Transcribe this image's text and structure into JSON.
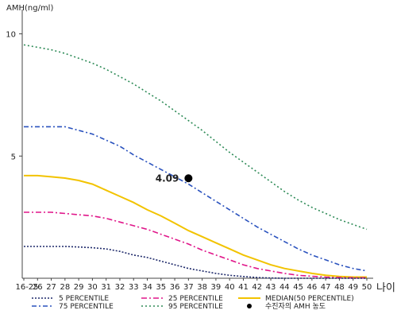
{
  "chart_data": {
    "type": "line",
    "ylabel": "AMH(ng/ml)",
    "xlabel": "나이",
    "categories": [
      "16-25",
      "26",
      "27",
      "28",
      "29",
      "30",
      "31",
      "32",
      "33",
      "34",
      "35",
      "36",
      "37",
      "38",
      "39",
      "40",
      "41",
      "42",
      "43",
      "44",
      "45",
      "46",
      "47",
      "48",
      "49",
      "50"
    ],
    "y_ticks": [
      5,
      10
    ],
    "ylim": [
      0,
      10.8
    ],
    "series": [
      {
        "name": "95 PERCENTILE",
        "color": "#2e8b57",
        "dash": "2,3",
        "values": [
          9.55,
          9.45,
          9.35,
          9.2,
          9.0,
          8.8,
          8.55,
          8.25,
          7.95,
          7.6,
          7.25,
          6.85,
          6.45,
          6.05,
          5.6,
          5.15,
          4.75,
          4.35,
          3.95,
          3.55,
          3.2,
          2.9,
          2.65,
          2.4,
          2.2,
          2.0
        ]
      },
      {
        "name": "75 PERCENTILE",
        "color": "#2a52be",
        "dash": "6,3,2,3",
        "values": [
          6.2,
          6.2,
          6.2,
          6.2,
          6.05,
          5.9,
          5.65,
          5.4,
          5.05,
          4.75,
          4.45,
          4.15,
          3.85,
          3.5,
          3.15,
          2.8,
          2.45,
          2.1,
          1.8,
          1.5,
          1.2,
          0.95,
          0.75,
          0.55,
          0.4,
          0.3
        ]
      },
      {
        "name": "MEDIAN(50 PERCENTILE)",
        "color": "#f2c300",
        "dash": "",
        "values": [
          4.2,
          4.2,
          4.15,
          4.1,
          4.0,
          3.85,
          3.6,
          3.35,
          3.1,
          2.8,
          2.55,
          2.25,
          1.95,
          1.7,
          1.45,
          1.2,
          0.95,
          0.75,
          0.55,
          0.4,
          0.3,
          0.2,
          0.12,
          0.07,
          0.05,
          0.05
        ]
      },
      {
        "name": "25 PERCENTILE",
        "color": "#e0178a",
        "dash": "7,3,2,3",
        "values": [
          2.7,
          2.7,
          2.7,
          2.65,
          2.6,
          2.55,
          2.45,
          2.3,
          2.15,
          2.0,
          1.8,
          1.6,
          1.4,
          1.15,
          0.95,
          0.75,
          0.55,
          0.4,
          0.3,
          0.2,
          0.12,
          0.08,
          0.05,
          0.03,
          0.02,
          0.02
        ]
      },
      {
        "name": "5 PERCENTILE",
        "color": "#1f2a6b",
        "dash": "2,2",
        "values": [
          1.3,
          1.3,
          1.3,
          1.3,
          1.28,
          1.25,
          1.2,
          1.1,
          0.95,
          0.85,
          0.7,
          0.55,
          0.4,
          0.3,
          0.2,
          0.12,
          0.07,
          0.03,
          0.01,
          0.0,
          0.0,
          0.0,
          0.0,
          0.0,
          0.0,
          0.0
        ]
      }
    ],
    "point": {
      "name": "수진자의 AMH 농도",
      "x": "37",
      "y": 4.09,
      "label": "4.09"
    },
    "legend": {
      "placement": "bottom",
      "rows": [
        [
          "5 PERCENTILE",
          "25 PERCENTILE",
          "MEDIAN(50 PERCENTILE)"
        ],
        [
          "75 PERCENTILE",
          "95 PERCENTILE",
          "수진자의 AMH 농도"
        ]
      ]
    },
    "grid": false
  }
}
